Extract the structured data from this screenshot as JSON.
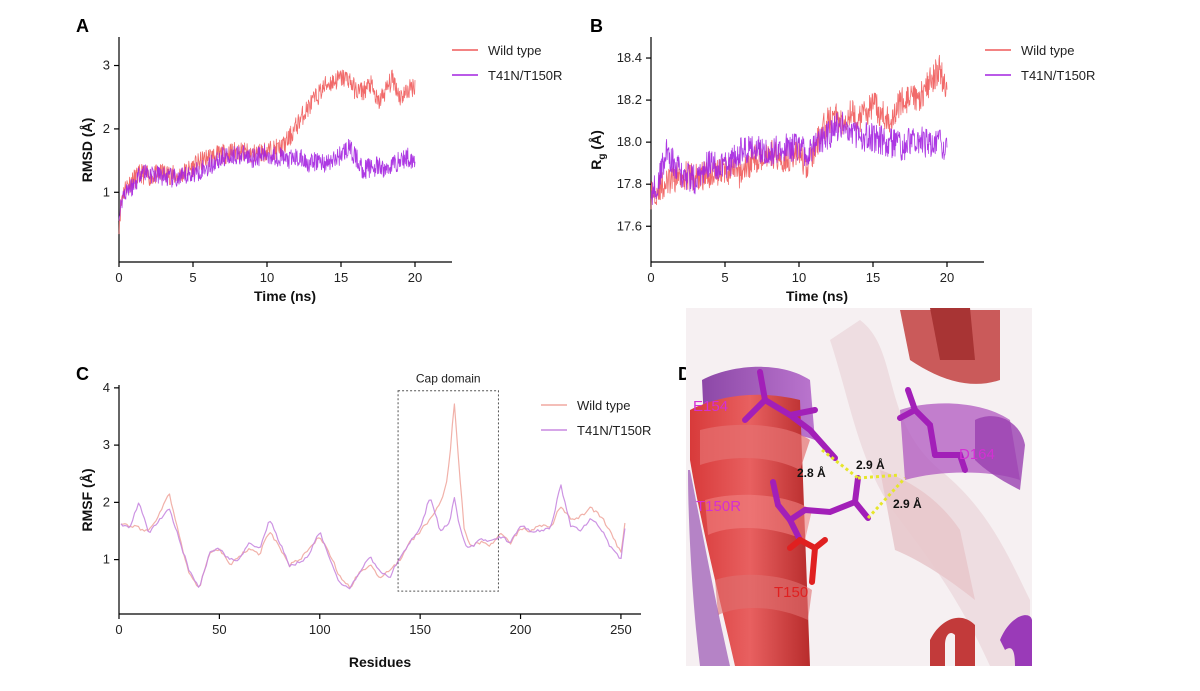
{
  "colors": {
    "wild_type": "#ef5a5a",
    "mutant": "#a424e0",
    "residue_magenta": "#d42fd4",
    "residue_red": "#e02020",
    "hbond": "#e6e62a"
  },
  "chart_data": [
    {
      "panel": "A",
      "type": "line",
      "xlabel": "Time (ns)",
      "ylabel": "RMSD (Å)",
      "xlim": [
        0,
        22.5
      ],
      "ylim": [
        -0.1,
        3.45
      ],
      "xticks": [
        0,
        5,
        10,
        15,
        20
      ],
      "yticks": [
        1,
        2,
        3
      ],
      "legend_position": "top-right",
      "series": [
        {
          "name": "Wild type",
          "x": [
            0,
            0.2,
            0.5,
            1,
            1.5,
            2,
            3,
            4,
            5,
            6,
            7,
            8,
            9,
            10,
            11,
            11.5,
            12,
            12.5,
            13,
            13.5,
            14,
            14.5,
            15,
            15.5,
            16,
            16.5,
            17,
            17.5,
            18,
            18.5,
            19,
            19.5,
            20
          ],
          "values": [
            0.5,
            0.95,
            1.1,
            1.2,
            1.3,
            1.25,
            1.3,
            1.25,
            1.4,
            1.55,
            1.6,
            1.65,
            1.6,
            1.65,
            1.7,
            1.85,
            2.05,
            2.25,
            2.4,
            2.55,
            2.7,
            2.75,
            2.8,
            2.8,
            2.6,
            2.6,
            2.7,
            2.4,
            2.6,
            2.8,
            2.5,
            2.6,
            2.7
          ]
        },
        {
          "name": "T41N/T150R",
          "x": [
            0,
            0.2,
            0.5,
            1,
            1.5,
            2,
            3,
            4,
            5,
            6,
            7,
            8,
            9,
            10,
            11,
            11.5,
            12,
            12.5,
            13,
            13.5,
            14,
            14.5,
            15,
            15.5,
            16,
            16.5,
            17,
            17.5,
            18,
            18.5,
            19,
            19.5,
            20
          ],
          "values": [
            0.6,
            0.9,
            1.05,
            1.1,
            1.35,
            1.3,
            1.25,
            1.2,
            1.3,
            1.4,
            1.55,
            1.6,
            1.55,
            1.6,
            1.55,
            1.5,
            1.55,
            1.5,
            1.45,
            1.5,
            1.45,
            1.5,
            1.6,
            1.7,
            1.55,
            1.35,
            1.4,
            1.4,
            1.35,
            1.45,
            1.5,
            1.55,
            1.5
          ]
        }
      ]
    },
    {
      "panel": "B",
      "type": "line",
      "xlabel": "Time (ns)",
      "ylabel": "Rg (Å)",
      "ylabel_main": "R",
      "ylabel_sub": "g",
      "ylabel_unit": " (Å)",
      "xlim": [
        0,
        22.5
      ],
      "ylim": [
        17.43,
        18.5
      ],
      "xticks": [
        0,
        5,
        10,
        15,
        20
      ],
      "yticks": [
        17.6,
        17.8,
        18.0,
        18.2,
        18.4
      ],
      "legend_position": "top-right",
      "series": [
        {
          "name": "Wild type",
          "x": [
            0,
            0.5,
            1,
            1.5,
            2,
            3,
            4,
            5,
            6,
            7,
            8,
            9,
            10,
            10.5,
            11,
            11.5,
            12,
            12.5,
            13,
            13.5,
            14,
            15,
            16,
            17,
            18,
            18.5,
            19,
            19.5,
            20
          ],
          "values": [
            17.75,
            17.78,
            17.8,
            17.82,
            17.85,
            17.83,
            17.85,
            17.87,
            17.85,
            17.92,
            17.95,
            17.92,
            17.95,
            17.88,
            17.95,
            18.05,
            18.1,
            18.12,
            18.1,
            18.15,
            18.1,
            18.18,
            18.1,
            18.2,
            18.2,
            18.25,
            18.3,
            18.35,
            18.22
          ]
        },
        {
          "name": "T41N/T150R",
          "x": [
            0,
            0.5,
            1,
            1.5,
            2,
            3,
            4,
            5,
            6,
            7,
            8,
            9,
            10,
            10.5,
            11,
            11.5,
            12,
            12.5,
            13,
            13.5,
            14,
            15,
            16,
            17,
            18,
            18.5,
            19,
            19.5,
            20
          ],
          "values": [
            17.75,
            17.82,
            17.95,
            17.9,
            17.85,
            17.82,
            17.9,
            17.88,
            17.95,
            17.98,
            17.95,
            17.98,
            17.97,
            17.95,
            17.98,
            18.0,
            18.03,
            18.07,
            18.08,
            18.05,
            18.03,
            18.02,
            18.0,
            17.98,
            18.02,
            18.0,
            17.98,
            18.0,
            17.97
          ]
        }
      ]
    },
    {
      "panel": "C",
      "type": "line",
      "xlabel": "Residues",
      "ylabel": "RMSF (Å)",
      "xlim": [
        0,
        260
      ],
      "ylim": [
        0.05,
        4.05
      ],
      "xticks": [
        0,
        50,
        100,
        150,
        200,
        250
      ],
      "yticks": [
        1,
        2,
        3,
        4
      ],
      "legend_position": "top-right",
      "annotation": {
        "label": "Cap domain",
        "x_range": [
          139,
          189
        ],
        "y_range": [
          0.45,
          3.95
        ]
      },
      "series": [
        {
          "name": "Wild type",
          "x": [
            1,
            5,
            10,
            15,
            20,
            25,
            30,
            35,
            40,
            45,
            50,
            55,
            60,
            65,
            70,
            75,
            80,
            85,
            90,
            95,
            100,
            105,
            110,
            115,
            120,
            125,
            130,
            135,
            140,
            145,
            150,
            155,
            160,
            163,
            165,
            167,
            169,
            172,
            175,
            180,
            185,
            190,
            195,
            200,
            205,
            210,
            215,
            220,
            225,
            230,
            235,
            240,
            245,
            250,
            252
          ],
          "values": [
            1.65,
            1.6,
            1.55,
            1.5,
            1.8,
            2.15,
            1.4,
            0.75,
            0.5,
            1.1,
            1.2,
            0.9,
            1.05,
            1.2,
            1.1,
            1.5,
            1.2,
            0.9,
            1.0,
            1.2,
            1.4,
            1.1,
            0.7,
            0.5,
            0.8,
            0.9,
            0.7,
            0.8,
            1.0,
            1.3,
            1.5,
            1.7,
            2.0,
            2.3,
            2.9,
            3.75,
            2.8,
            1.5,
            1.25,
            1.3,
            1.25,
            1.45,
            1.3,
            1.55,
            1.5,
            1.6,
            1.55,
            1.95,
            1.7,
            1.75,
            1.9,
            1.75,
            1.5,
            1.1,
            1.65
          ]
        },
        {
          "name": "T41N/T150R",
          "x": [
            1,
            5,
            10,
            15,
            20,
            25,
            30,
            35,
            40,
            45,
            50,
            55,
            60,
            65,
            70,
            75,
            80,
            85,
            90,
            95,
            100,
            105,
            110,
            115,
            120,
            125,
            130,
            135,
            140,
            145,
            150,
            155,
            160,
            163,
            165,
            167,
            169,
            172,
            175,
            180,
            185,
            190,
            195,
            200,
            205,
            210,
            215,
            220,
            225,
            230,
            235,
            240,
            245,
            250,
            252
          ],
          "values": [
            1.6,
            1.55,
            2.0,
            1.45,
            1.7,
            1.9,
            1.35,
            0.8,
            0.5,
            1.1,
            1.2,
            1.0,
            1.0,
            1.3,
            1.2,
            1.7,
            1.3,
            0.9,
            0.95,
            1.1,
            1.5,
            1.0,
            0.6,
            0.5,
            0.8,
            1.05,
            0.8,
            0.7,
            1.05,
            1.3,
            1.55,
            2.1,
            1.5,
            1.6,
            1.7,
            2.1,
            1.7,
            1.3,
            1.2,
            1.35,
            1.3,
            1.4,
            1.3,
            1.6,
            1.5,
            1.5,
            1.55,
            2.3,
            1.6,
            1.5,
            1.7,
            1.55,
            1.2,
            1.0,
            1.55
          ]
        }
      ]
    }
  ],
  "panels": {
    "A": {
      "letter": "A"
    },
    "B": {
      "letter": "B"
    },
    "C": {
      "letter": "C"
    },
    "D": {
      "letter": "D",
      "residue_labels": [
        "E154",
        "D164",
        "T150R",
        "T150"
      ],
      "distances": [
        "2.8 Å",
        "2.9 Å",
        "2.9 Å"
      ]
    }
  }
}
